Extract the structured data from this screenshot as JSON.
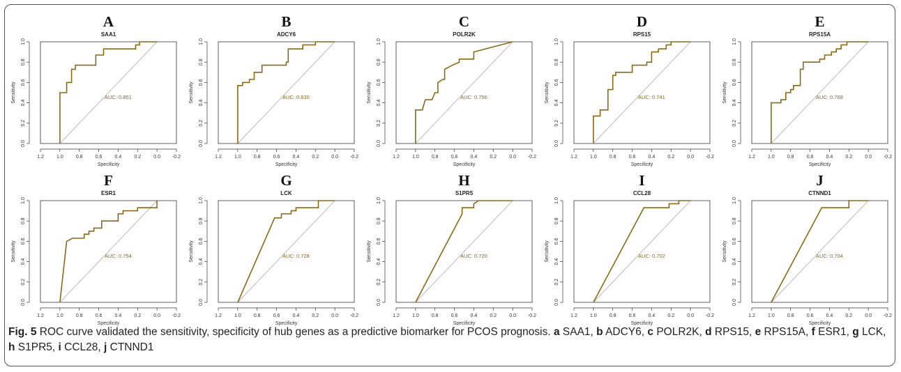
{
  "caption": {
    "fig_label": "Fig. 5",
    "text": "ROC curve validated the sensitivity, specificity of hub genes as a predictive biomarker for PCOS prognosis.",
    "items": [
      {
        "letter": "a",
        "gene": "SAA1"
      },
      {
        "letter": "b",
        "gene": "ADCY6"
      },
      {
        "letter": "c",
        "gene": "POLR2K"
      },
      {
        "letter": "d",
        "gene": "RPS15"
      },
      {
        "letter": "e",
        "gene": "RPS15A"
      },
      {
        "letter": "f",
        "gene": "ESR1"
      },
      {
        "letter": "g",
        "gene": "LCK"
      },
      {
        "letter": "h",
        "gene": "S1PR5"
      },
      {
        "letter": "i",
        "gene": "CCL28"
      },
      {
        "letter": "j",
        "gene": "CTNND1"
      }
    ]
  },
  "colors": {
    "curve": "#8b6914",
    "diagonal": "#bbbbbb",
    "axis": "#333333",
    "auc_text": "#8b6914"
  },
  "chart_data": [
    {
      "type": "line",
      "panel": "A",
      "title": "SAA1",
      "xlabel": "Specificity",
      "ylabel": "Sensitivity",
      "xlim": [
        1.2,
        -0.2
      ],
      "ylim": [
        0,
        1
      ],
      "x_reversed": true,
      "xticks": [
        "1.2",
        "1.0",
        "0.8",
        "0.6",
        "0.4",
        "0.2",
        "0.0",
        "-0.2"
      ],
      "yticks": [
        "0.0",
        "0.2",
        "0.4",
        "0.6",
        "0.8",
        "1.0"
      ],
      "annotation": "AUC: 0.851",
      "points": [
        [
          1.0,
          0
        ],
        [
          1.0,
          0.5
        ],
        [
          0.93,
          0.5
        ],
        [
          0.93,
          0.6
        ],
        [
          0.88,
          0.6
        ],
        [
          0.88,
          0.73
        ],
        [
          0.84,
          0.73
        ],
        [
          0.84,
          0.77
        ],
        [
          0.63,
          0.77
        ],
        [
          0.63,
          0.87
        ],
        [
          0.55,
          0.87
        ],
        [
          0.55,
          0.93
        ],
        [
          0.22,
          0.93
        ],
        [
          0.22,
          0.97
        ],
        [
          0.18,
          0.97
        ],
        [
          0.18,
          1.0
        ],
        [
          0.0,
          1.0
        ]
      ]
    },
    {
      "type": "line",
      "panel": "B",
      "title": "ADCY6",
      "xlabel": "Specificity",
      "ylabel": "Sensitivity",
      "xlim": [
        1.2,
        -0.2
      ],
      "ylim": [
        0,
        1
      ],
      "x_reversed": true,
      "xticks": [
        "1.2",
        "1.0",
        "0.8",
        "0.6",
        "0.4",
        "0.2",
        "0.0",
        "-0.2"
      ],
      "yticks": [
        "0.0",
        "0.2",
        "0.4",
        "0.6",
        "0.8",
        "1.0"
      ],
      "annotation": "AUC: 0.830",
      "points": [
        [
          1.0,
          0
        ],
        [
          1.0,
          0.57
        ],
        [
          0.95,
          0.57
        ],
        [
          0.95,
          0.6
        ],
        [
          0.88,
          0.6
        ],
        [
          0.88,
          0.63
        ],
        [
          0.83,
          0.63
        ],
        [
          0.83,
          0.7
        ],
        [
          0.75,
          0.7
        ],
        [
          0.75,
          0.77
        ],
        [
          0.5,
          0.77
        ],
        [
          0.5,
          0.8
        ],
        [
          0.48,
          0.8
        ],
        [
          0.48,
          0.93
        ],
        [
          0.33,
          0.93
        ],
        [
          0.33,
          0.97
        ],
        [
          0.2,
          0.97
        ],
        [
          0.2,
          1.0
        ],
        [
          0.0,
          1.0
        ]
      ]
    },
    {
      "type": "line",
      "panel": "C",
      "title": "POLR2K",
      "xlabel": "Specificity",
      "ylabel": "Sensitivity",
      "xlim": [
        1.2,
        -0.2
      ],
      "ylim": [
        0,
        1
      ],
      "x_reversed": true,
      "xticks": [
        "1.2",
        "1.0",
        "0.8",
        "0.6",
        "0.4",
        "0.2",
        "0.0",
        "-0.2"
      ],
      "yticks": [
        "0.0",
        "0.2",
        "0.4",
        "0.6",
        "0.8",
        "1.0"
      ],
      "annotation": "AUC: 0.756",
      "points": [
        [
          1.0,
          0
        ],
        [
          1.0,
          0.33
        ],
        [
          0.93,
          0.33
        ],
        [
          0.9,
          0.43
        ],
        [
          0.83,
          0.43
        ],
        [
          0.8,
          0.5
        ],
        [
          0.77,
          0.5
        ],
        [
          0.77,
          0.6
        ],
        [
          0.72,
          0.63
        ],
        [
          0.7,
          0.63
        ],
        [
          0.7,
          0.73
        ],
        [
          0.62,
          0.77
        ],
        [
          0.55,
          0.8
        ],
        [
          0.55,
          0.83
        ],
        [
          0.4,
          0.83
        ],
        [
          0.4,
          0.9
        ],
        [
          0.0,
          1.0
        ]
      ]
    },
    {
      "type": "line",
      "panel": "D",
      "title": "RPS15",
      "xlabel": "Specificity",
      "ylabel": "Sensitivity",
      "xlim": [
        1.2,
        -0.2
      ],
      "ylim": [
        0,
        1
      ],
      "x_reversed": true,
      "xticks": [
        "1.2",
        "1.0",
        "0.8",
        "0.6",
        "0.4",
        "0.2",
        "0.0",
        "-0.2"
      ],
      "yticks": [
        "0.0",
        "0.2",
        "0.4",
        "0.6",
        "0.8",
        "1.0"
      ],
      "annotation": "AUC: 0.741",
      "points": [
        [
          1.0,
          0
        ],
        [
          1.0,
          0.27
        ],
        [
          0.93,
          0.27
        ],
        [
          0.93,
          0.33
        ],
        [
          0.85,
          0.33
        ],
        [
          0.85,
          0.53
        ],
        [
          0.8,
          0.53
        ],
        [
          0.8,
          0.67
        ],
        [
          0.77,
          0.67
        ],
        [
          0.77,
          0.7
        ],
        [
          0.6,
          0.7
        ],
        [
          0.6,
          0.77
        ],
        [
          0.45,
          0.77
        ],
        [
          0.45,
          0.8
        ],
        [
          0.4,
          0.8
        ],
        [
          0.4,
          0.9
        ],
        [
          0.33,
          0.9
        ],
        [
          0.33,
          0.93
        ],
        [
          0.25,
          0.93
        ],
        [
          0.25,
          0.97
        ],
        [
          0.2,
          0.97
        ],
        [
          0.2,
          1.0
        ],
        [
          0.0,
          1.0
        ]
      ]
    },
    {
      "type": "line",
      "panel": "E",
      "title": "RPS15A",
      "xlabel": "Specificity",
      "ylabel": "Sensitivity",
      "xlim": [
        1.2,
        -0.2
      ],
      "ylim": [
        0,
        1
      ],
      "x_reversed": true,
      "xticks": [
        "1.2",
        "1.0",
        "0.8",
        "0.6",
        "0.4",
        "0.2",
        "0.0",
        "-0.2"
      ],
      "yticks": [
        "0.0",
        "0.2",
        "0.4",
        "0.6",
        "0.8",
        "1.0"
      ],
      "annotation": "AUC: 0.769",
      "points": [
        [
          1.0,
          0
        ],
        [
          1.0,
          0.4
        ],
        [
          0.9,
          0.4
        ],
        [
          0.9,
          0.43
        ],
        [
          0.85,
          0.43
        ],
        [
          0.85,
          0.5
        ],
        [
          0.8,
          0.5
        ],
        [
          0.8,
          0.53
        ],
        [
          0.77,
          0.53
        ],
        [
          0.77,
          0.57
        ],
        [
          0.7,
          0.57
        ],
        [
          0.7,
          0.73
        ],
        [
          0.67,
          0.73
        ],
        [
          0.67,
          0.8
        ],
        [
          0.5,
          0.8
        ],
        [
          0.5,
          0.83
        ],
        [
          0.45,
          0.83
        ],
        [
          0.45,
          0.87
        ],
        [
          0.38,
          0.87
        ],
        [
          0.38,
          0.9
        ],
        [
          0.33,
          0.9
        ],
        [
          0.33,
          0.93
        ],
        [
          0.28,
          0.93
        ],
        [
          0.28,
          0.97
        ],
        [
          0.22,
          0.97
        ],
        [
          0.22,
          1.0
        ],
        [
          0.0,
          1.0
        ]
      ]
    },
    {
      "type": "line",
      "panel": "F",
      "title": "ESR1",
      "xlabel": "Specificity",
      "ylabel": "Sensitivity",
      "xlim": [
        1.2,
        -0.2
      ],
      "ylim": [
        0,
        1
      ],
      "x_reversed": true,
      "xticks": [
        "1.2",
        "1.0",
        "0.8",
        "0.6",
        "0.4",
        "0.2",
        "0.0",
        "-0.2"
      ],
      "yticks": [
        "0.0",
        "0.2",
        "0.4",
        "0.6",
        "0.8",
        "1.0"
      ],
      "annotation": "AUC: 0.754",
      "points": [
        [
          1.0,
          0
        ],
        [
          0.93,
          0.6
        ],
        [
          0.87,
          0.63
        ],
        [
          0.75,
          0.63
        ],
        [
          0.75,
          0.67
        ],
        [
          0.7,
          0.67
        ],
        [
          0.7,
          0.7
        ],
        [
          0.65,
          0.7
        ],
        [
          0.65,
          0.73
        ],
        [
          0.57,
          0.73
        ],
        [
          0.57,
          0.8
        ],
        [
          0.4,
          0.8
        ],
        [
          0.4,
          0.87
        ],
        [
          0.35,
          0.87
        ],
        [
          0.35,
          0.9
        ],
        [
          0.2,
          0.9
        ],
        [
          0.2,
          0.93
        ],
        [
          0.0,
          0.93
        ],
        [
          0.0,
          1.0
        ]
      ]
    },
    {
      "type": "line",
      "panel": "G",
      "title": "LCK",
      "xlabel": "Specificity",
      "ylabel": "Sensitivity",
      "xlim": [
        1.2,
        -0.2
      ],
      "ylim": [
        0,
        1
      ],
      "x_reversed": true,
      "xticks": [
        "1.2",
        "1.0",
        "0.8",
        "0.6",
        "0.4",
        "0.2",
        "0.0",
        "-0.2"
      ],
      "yticks": [
        "0.0",
        "0.2",
        "0.4",
        "0.6",
        "0.8",
        "1.0"
      ],
      "annotation": "AUC: 0.728",
      "points": [
        [
          1.0,
          0
        ],
        [
          0.62,
          0.83
        ],
        [
          0.55,
          0.83
        ],
        [
          0.55,
          0.87
        ],
        [
          0.45,
          0.87
        ],
        [
          0.45,
          0.9
        ],
        [
          0.4,
          0.9
        ],
        [
          0.4,
          0.93
        ],
        [
          0.17,
          0.93
        ],
        [
          0.17,
          1.0
        ],
        [
          0.0,
          1.0
        ]
      ]
    },
    {
      "type": "line",
      "panel": "H",
      "title": "S1PR5",
      "xlabel": "Specificity",
      "ylabel": "Sensitivity",
      "xlim": [
        1.2,
        -0.2
      ],
      "ylim": [
        0,
        1
      ],
      "x_reversed": true,
      "xticks": [
        "1.2",
        "1.0",
        "0.8",
        "0.6",
        "0.4",
        "0.2",
        "0.0",
        "-0.2"
      ],
      "yticks": [
        "0.0",
        "0.2",
        "0.4",
        "0.6",
        "0.8",
        "1.0"
      ],
      "annotation": "AUC: 0.720",
      "points": [
        [
          1.0,
          0
        ],
        [
          0.52,
          0.87
        ],
        [
          0.52,
          0.93
        ],
        [
          0.4,
          0.93
        ],
        [
          0.4,
          0.97
        ],
        [
          0.35,
          1.0
        ],
        [
          0.0,
          1.0
        ]
      ]
    },
    {
      "type": "line",
      "panel": "I",
      "title": "CCL28",
      "xlabel": "Specificity",
      "ylabel": "Sensitivity",
      "xlim": [
        1.2,
        -0.2
      ],
      "ylim": [
        0,
        1
      ],
      "x_reversed": true,
      "xticks": [
        "1.2",
        "1.0",
        "0.8",
        "0.6",
        "0.4",
        "0.2",
        "0.0",
        "-0.2"
      ],
      "yticks": [
        "0.0",
        "0.2",
        "0.4",
        "0.6",
        "0.8",
        "1.0"
      ],
      "annotation": "AUC: 0.702",
      "points": [
        [
          1.0,
          0
        ],
        [
          0.48,
          0.93
        ],
        [
          0.22,
          0.93
        ],
        [
          0.22,
          0.97
        ],
        [
          0.12,
          0.97
        ],
        [
          0.12,
          1.0
        ],
        [
          0.0,
          1.0
        ]
      ]
    },
    {
      "type": "line",
      "panel": "J",
      "title": "CTNND1",
      "xlabel": "Specificity",
      "ylabel": "Sensitivity",
      "xlim": [
        1.2,
        -0.2
      ],
      "ylim": [
        0,
        1
      ],
      "x_reversed": true,
      "xticks": [
        "1.2",
        "1.0",
        "0.8",
        "0.6",
        "0.4",
        "0.2",
        "0.0",
        "-0.2"
      ],
      "yticks": [
        "0.0",
        "0.2",
        "0.4",
        "0.6",
        "0.8",
        "1.0"
      ],
      "annotation": "AUC: 0.704",
      "points": [
        [
          1.0,
          0
        ],
        [
          0.48,
          0.93
        ],
        [
          0.2,
          0.93
        ],
        [
          0.2,
          1.0
        ],
        [
          0.0,
          1.0
        ]
      ]
    }
  ]
}
